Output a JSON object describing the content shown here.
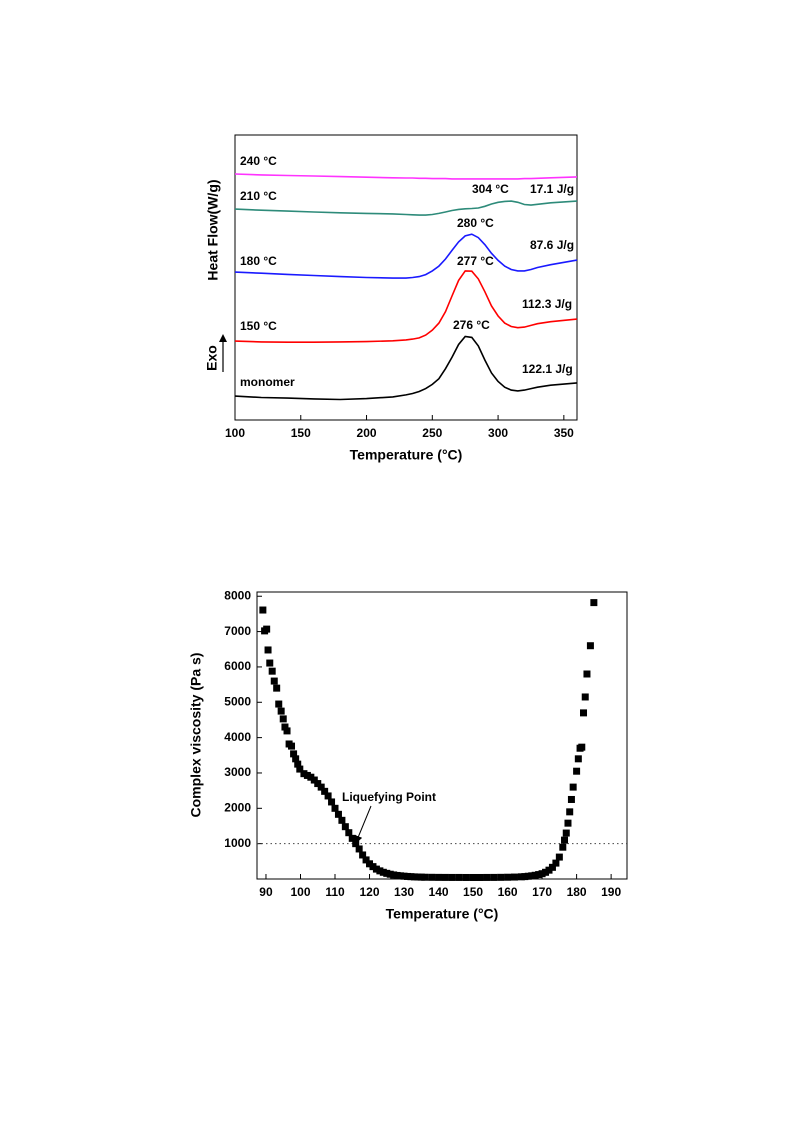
{
  "chart_data": [
    {
      "type": "line",
      "x_label": "Temperature (°C)",
      "y_label": "Heat Flow(W/g)",
      "direction_label": "Exo",
      "x": [
        100,
        120,
        140,
        160,
        180,
        200,
        220,
        230,
        235,
        240,
        245,
        250,
        255,
        260,
        265,
        270,
        275,
        280,
        285,
        290,
        295,
        300,
        305,
        310,
        315,
        320,
        325,
        330,
        340,
        360
      ],
      "xlim": [
        100,
        360
      ],
      "xticks": [
        100,
        150,
        200,
        250,
        300,
        350
      ],
      "ylim": [
        0,
        100
      ],
      "series": [
        {
          "name": "monomer",
          "color": "#000000",
          "values": [
            8.4,
            7.9,
            7.7,
            7.4,
            7.2,
            7.5,
            8.1,
            8.8,
            9.3,
            10,
            11,
            12.5,
            14.5,
            18,
            22,
            26.5,
            29.3,
            29,
            26,
            21,
            16.5,
            13.5,
            11.5,
            10.5,
            10.2,
            10.5,
            11,
            11.5,
            12.2,
            13
          ]
        },
        {
          "name": "150 °C",
          "color": "#ff0000",
          "values": [
            27.7,
            27.4,
            27.3,
            27.3,
            27.4,
            27.5,
            27.8,
            28.1,
            28.4,
            28.8,
            29.8,
            31.5,
            34,
            38,
            43.5,
            49,
            52.3,
            52.2,
            49.5,
            45,
            40,
            36.5,
            34,
            32.8,
            32.4,
            32.6,
            33.2,
            33.8,
            34.5,
            35.4
          ]
        },
        {
          "name": "180 °C",
          "color": "#1a1aff",
          "values": [
            51.9,
            51.5,
            51.1,
            50.7,
            50.3,
            50,
            49.8,
            49.8,
            50,
            50.3,
            51,
            52.3,
            54,
            56.5,
            59.5,
            62.5,
            64.6,
            65.2,
            64,
            61.5,
            58.5,
            56,
            54,
            52.8,
            52.3,
            52.3,
            52.8,
            53.5,
            54.5,
            56.1
          ]
        },
        {
          "name": "210 °C",
          "color": "#2e8b7a",
          "values": [
            74,
            73.6,
            73.3,
            73,
            72.7,
            72.5,
            72.3,
            72.1,
            72,
            71.9,
            71.9,
            72.1,
            72.5,
            73,
            73.5,
            73.9,
            74.1,
            74.2,
            74.4,
            75,
            75.8,
            76.4,
            76.7,
            76.8,
            76.4,
            75.6,
            75.4,
            75.7,
            76.2,
            76.8
          ]
        },
        {
          "name": "240 °C",
          "color": "#ff33ff",
          "values": [
            86.3,
            86,
            85.8,
            85.6,
            85.4,
            85.2,
            85,
            84.9,
            84.9,
            84.8,
            84.8,
            84.7,
            84.7,
            84.7,
            84.6,
            84.6,
            84.6,
            84.6,
            84.6,
            84.6,
            84.6,
            84.6,
            84.6,
            84.6,
            84.6,
            84.7,
            84.7,
            84.8,
            85,
            85.3
          ]
        }
      ],
      "annotations": [
        "276 °C",
        "122.1 J/g",
        "277 °C",
        "112.3 J/g",
        "280 °C",
        "87.6 J/g",
        "304 °C",
        "17.1 J/g"
      ]
    },
    {
      "type": "scatter",
      "x_label": "Temperature (°C)",
      "y_label": "Complex viscosity (Pa s)",
      "color": "#000000",
      "x": [
        89.1,
        89.6,
        90.2,
        90.6,
        91.1,
        91.8,
        92.4,
        93.1,
        93.7,
        94.4,
        95,
        95.5,
        96.1,
        96.7,
        97.4,
        98,
        98.6,
        99.2,
        99.8,
        101,
        102,
        103,
        104,
        105,
        106,
        107,
        108,
        109,
        110,
        111,
        112,
        113,
        114,
        115,
        116,
        117,
        118,
        119,
        120,
        121,
        122,
        123,
        124,
        125,
        126,
        127,
        128,
        129,
        130,
        131,
        132,
        133,
        134,
        135,
        136,
        138,
        140,
        142,
        144,
        146,
        148,
        150,
        152,
        154,
        156,
        158,
        160,
        162,
        164,
        165,
        166,
        167,
        168,
        169,
        170,
        171,
        172,
        173,
        174,
        175,
        176,
        176.5,
        177,
        177.5,
        178,
        178.5,
        179,
        180,
        180.5,
        181,
        181.5,
        182,
        182.5,
        183,
        184,
        185
      ],
      "values": [
        7610,
        7020,
        7070,
        6480,
        6110,
        5880,
        5600,
        5400,
        4950,
        4750,
        4530,
        4300,
        4190,
        3820,
        3760,
        3540,
        3400,
        3250,
        3110,
        2980,
        2930,
        2880,
        2800,
        2700,
        2600,
        2480,
        2350,
        2180,
        2000,
        1830,
        1660,
        1480,
        1310,
        1150,
        1000,
        850,
        680,
        540,
        430,
        350,
        280,
        230,
        190,
        160,
        135,
        115,
        100,
        90,
        80,
        72,
        66,
        60,
        56,
        53,
        50,
        48,
        46,
        45,
        44,
        44,
        43,
        43,
        43,
        44,
        45,
        47,
        50,
        55,
        62,
        68,
        78,
        90,
        105,
        125,
        150,
        190,
        250,
        330,
        450,
        620,
        900,
        1100,
        1300,
        1580,
        1900,
        2250,
        2600,
        3050,
        3400,
        3700,
        3730,
        4700,
        5150,
        5800,
        6600,
        7820
      ],
      "xlim": [
        87.4,
        194.6
      ],
      "xticks": [
        90,
        100,
        110,
        120,
        130,
        140,
        150,
        160,
        170,
        180,
        190
      ],
      "ylim": [
        0,
        8120
      ],
      "yticks": [
        1000,
        2000,
        3000,
        4000,
        5000,
        6000,
        7000,
        8000
      ],
      "reference_line": 1000,
      "annotation": "Liquefying Point"
    }
  ]
}
